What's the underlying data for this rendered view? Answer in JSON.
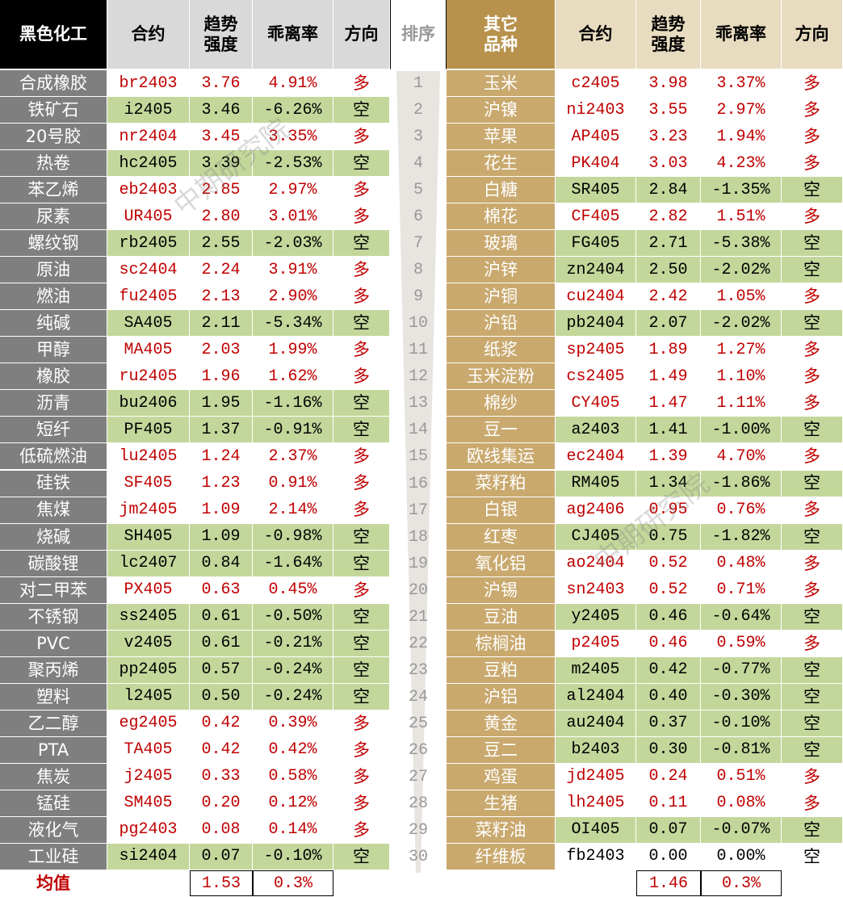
{
  "header": {
    "left": [
      "黑色化工",
      "合约",
      "趋势\n强度",
      "乖离率",
      "方向"
    ],
    "rank": "排序",
    "right": [
      "其它\n品种",
      "合约",
      "趋势\n强度",
      "乖离率",
      "方向"
    ]
  },
  "ranks": [
    1,
    2,
    3,
    4,
    5,
    6,
    7,
    8,
    9,
    10,
    11,
    12,
    13,
    14,
    15,
    16,
    17,
    18,
    19,
    20,
    21,
    22,
    23,
    24,
    25,
    26,
    27,
    28,
    29,
    30
  ],
  "left_rows": [
    [
      "合成橡胶",
      "br2403",
      "3.76",
      "4.91%",
      "多"
    ],
    [
      "铁矿石",
      "i2405",
      "3.46",
      "-6.26%",
      "空"
    ],
    [
      "20号胶",
      "nr2404",
      "3.45",
      "3.35%",
      "多"
    ],
    [
      "热卷",
      "hc2405",
      "3.39",
      "-2.53%",
      "空"
    ],
    [
      "苯乙烯",
      "eb2403",
      "2.85",
      "2.97%",
      "多"
    ],
    [
      "尿素",
      "UR405",
      "2.80",
      "3.01%",
      "多"
    ],
    [
      "螺纹钢",
      "rb2405",
      "2.55",
      "-2.03%",
      "空"
    ],
    [
      "原油",
      "sc2404",
      "2.24",
      "3.91%",
      "多"
    ],
    [
      "燃油",
      "fu2405",
      "2.13",
      "2.90%",
      "多"
    ],
    [
      "纯碱",
      "SA405",
      "2.11",
      "-5.34%",
      "空"
    ],
    [
      "甲醇",
      "MA405",
      "2.03",
      "1.99%",
      "多"
    ],
    [
      "橡胶",
      "ru2405",
      "1.96",
      "1.62%",
      "多"
    ],
    [
      "沥青",
      "bu2406",
      "1.95",
      "-1.16%",
      "空"
    ],
    [
      "短纤",
      "PF405",
      "1.37",
      "-0.91%",
      "空"
    ],
    [
      "低硫燃油",
      "lu2405",
      "1.24",
      "2.37%",
      "多"
    ],
    [
      "硅铁",
      "SF405",
      "1.23",
      "0.91%",
      "多"
    ],
    [
      "焦煤",
      "jm2405",
      "1.09",
      "2.14%",
      "多"
    ],
    [
      "烧碱",
      "SH405",
      "1.09",
      "-0.98%",
      "空"
    ],
    [
      "碳酸锂",
      "lc2407",
      "0.84",
      "-1.64%",
      "空"
    ],
    [
      "对二甲苯",
      "PX405",
      "0.63",
      "0.45%",
      "多"
    ],
    [
      "不锈钢",
      "ss2405",
      "0.61",
      "-0.50%",
      "空"
    ],
    [
      "PVC",
      "v2405",
      "0.61",
      "-0.21%",
      "空"
    ],
    [
      "聚丙烯",
      "pp2405",
      "0.57",
      "-0.24%",
      "空"
    ],
    [
      "塑料",
      "l2405",
      "0.50",
      "-0.24%",
      "空"
    ],
    [
      "乙二醇",
      "eg2405",
      "0.42",
      "0.39%",
      "多"
    ],
    [
      "PTA",
      "TA405",
      "0.42",
      "0.42%",
      "多"
    ],
    [
      "焦炭",
      "j2405",
      "0.33",
      "0.58%",
      "多"
    ],
    [
      "锰硅",
      "SM405",
      "0.20",
      "0.12%",
      "多"
    ],
    [
      "液化气",
      "pg2403",
      "0.08",
      "0.14%",
      "多"
    ],
    [
      "工业硅",
      "si2404",
      "0.07",
      "-0.10%",
      "空"
    ]
  ],
  "right_rows": [
    [
      "玉米",
      "c2405",
      "3.98",
      "3.37%",
      "多"
    ],
    [
      "沪镍",
      "ni2403",
      "3.55",
      "2.97%",
      "多"
    ],
    [
      "苹果",
      "AP405",
      "3.23",
      "1.94%",
      "多"
    ],
    [
      "花生",
      "PK404",
      "3.03",
      "4.23%",
      "多"
    ],
    [
      "白糖",
      "SR405",
      "2.84",
      "-1.35%",
      "空"
    ],
    [
      "棉花",
      "CF405",
      "2.82",
      "1.51%",
      "多"
    ],
    [
      "玻璃",
      "FG405",
      "2.71",
      "-5.38%",
      "空"
    ],
    [
      "沪锌",
      "zn2404",
      "2.50",
      "-2.02%",
      "空"
    ],
    [
      "沪铜",
      "cu2404",
      "2.42",
      "1.05%",
      "多"
    ],
    [
      "沪铅",
      "pb2404",
      "2.07",
      "-2.02%",
      "空"
    ],
    [
      "纸浆",
      "sp2405",
      "1.89",
      "1.27%",
      "多"
    ],
    [
      "玉米淀粉",
      "cs2405",
      "1.49",
      "1.10%",
      "多"
    ],
    [
      "棉纱",
      "CY405",
      "1.47",
      "1.11%",
      "多"
    ],
    [
      "豆一",
      "a2403",
      "1.41",
      "-1.00%",
      "空"
    ],
    [
      "欧线集运",
      "ec2404",
      "1.39",
      "4.70%",
      "多"
    ],
    [
      "菜籽粕",
      "RM405",
      "1.34",
      "-1.86%",
      "空"
    ],
    [
      "白银",
      "ag2406",
      "0.95",
      "0.76%",
      "多"
    ],
    [
      "红枣",
      "CJ405",
      "0.75",
      "-1.82%",
      "空"
    ],
    [
      "氧化铝",
      "ao2404",
      "0.52",
      "0.48%",
      "多"
    ],
    [
      "沪锡",
      "sn2403",
      "0.52",
      "0.71%",
      "多"
    ],
    [
      "豆油",
      "y2405",
      "0.46",
      "-0.64%",
      "空"
    ],
    [
      "棕榈油",
      "p2405",
      "0.46",
      "0.59%",
      "多"
    ],
    [
      "豆粕",
      "m2405",
      "0.42",
      "-0.77%",
      "空"
    ],
    [
      "沪铝",
      "al2404",
      "0.40",
      "-0.30%",
      "空"
    ],
    [
      "黄金",
      "au2404",
      "0.37",
      "-0.10%",
      "空"
    ],
    [
      "豆二",
      "b2403",
      "0.30",
      "-0.81%",
      "空"
    ],
    [
      "鸡蛋",
      "jd2405",
      "0.24",
      "0.51%",
      "多"
    ],
    [
      "生猪",
      "lh2405",
      "0.11",
      "0.08%",
      "多"
    ],
    [
      "菜籽油",
      "OI405",
      "0.07",
      "-0.07%",
      "空"
    ],
    [
      "纤维板",
      "fb2403",
      "0.00",
      "0.00%",
      "空"
    ]
  ],
  "footer": {
    "label": "均值",
    "left": [
      "1.53",
      "0.3%"
    ],
    "right": [
      "1.46",
      "0.3%"
    ]
  },
  "watermark": "中期研究院"
}
